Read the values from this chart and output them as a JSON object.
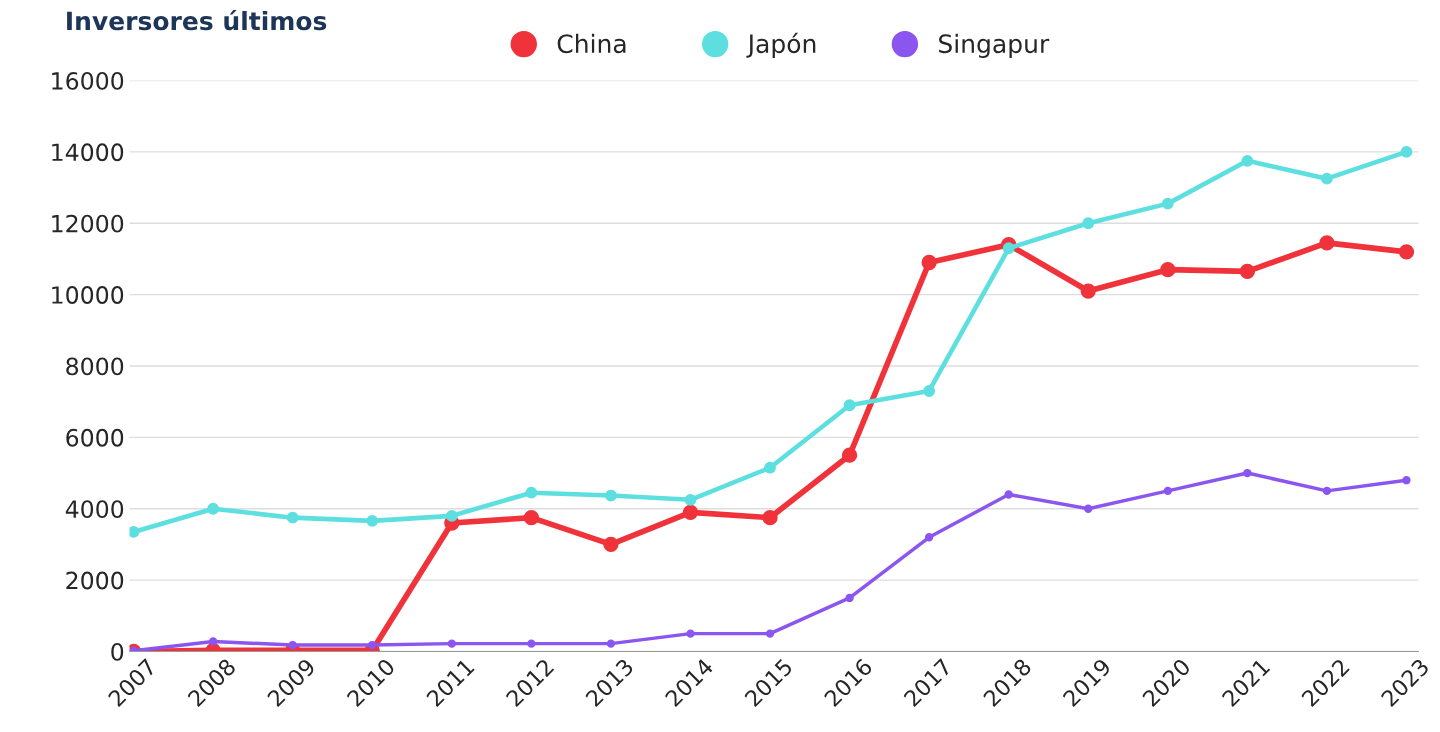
{
  "chart_data": {
    "type": "line",
    "title": "Inversores últimos",
    "categories": [
      "2007",
      "2008",
      "2009",
      "2010",
      "2011",
      "2012",
      "2013",
      "2014",
      "2015",
      "2016",
      "2017",
      "2018",
      "2019",
      "2020",
      "2021",
      "2022",
      "2023"
    ],
    "series": [
      {
        "name": "China",
        "color": "#f0333a",
        "values": [
          0,
          30,
          30,
          30,
          3600,
          3750,
          3000,
          3900,
          3750,
          5500,
          10900,
          11400,
          10100,
          10700,
          10650,
          11450,
          11200
        ]
      },
      {
        "name": "Japón",
        "color": "#5ddfe0",
        "values": [
          3350,
          4000,
          3750,
          3660,
          3800,
          4450,
          4370,
          4250,
          5150,
          6900,
          7300,
          11300,
          12000,
          12550,
          13750,
          13250,
          14000
        ]
      },
      {
        "name": "Singapur",
        "color": "#8b55f0",
        "values": [
          20,
          280,
          180,
          180,
          220,
          220,
          220,
          500,
          500,
          1500,
          3200,
          4400,
          4000,
          4500,
          5000,
          4500,
          4800
        ]
      }
    ],
    "ylim": [
      0,
      16000
    ],
    "yticks": [
      0,
      2000,
      4000,
      6000,
      8000,
      10000,
      12000,
      14000,
      16000
    ],
    "grid": "y",
    "legend": "top",
    "marker": "circle",
    "line_style": "solid"
  }
}
